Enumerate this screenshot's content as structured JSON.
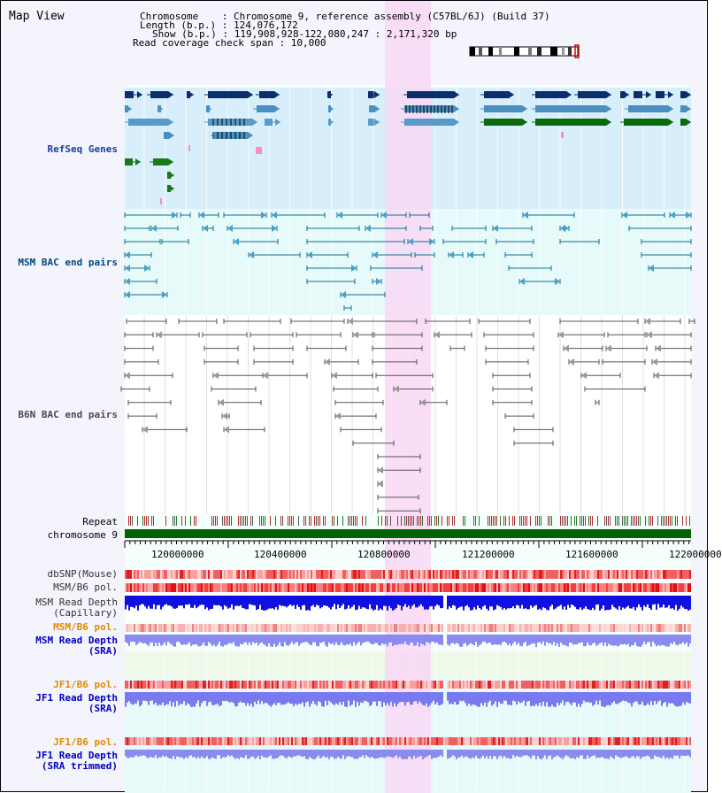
{
  "title": "Map View",
  "header": {
    "chromosome": "Chromosome    : Chromosome 9, reference assembly (C57BL/6J) (Build 37)",
    "length": "Length (b.p.) : 124,076,172",
    "show": "Show (b.p.) : 119,908,928-122,080,247 : 2,171,320 bp",
    "coverage": "Read coverage check span : 10,000"
  },
  "tracks": {
    "refseq": "RefSeq Genes",
    "msm_bac": "MSM BAC end pairs",
    "b6n_bac": "B6N BAC end pairs",
    "repeat": "Repeat",
    "chromosome": "chromosome 9",
    "dbsnp": "dbSNP(Mouse)",
    "msm_b6_pol_cap": "MSM/B6 pol.",
    "msm_read_depth_cap_1": "MSM Read Depth",
    "msm_read_depth_cap_2": "(Capillary)",
    "msm_b6_pol_sra": "MSM/B6 pol.",
    "msm_read_depth_sra_1": "MSM Read Depth",
    "msm_read_depth_sra_2": "(SRA)",
    "jf1_b6_pol_sra": "JF1/B6 pol.",
    "jf1_read_depth_sra_1": "JF1 Read Depth",
    "jf1_read_depth_sra_2": "(SRA)",
    "jf1_b6_pol_trim": "JF1/B6 pol.",
    "jf1_read_depth_trim_1": "JF1 Read Depth",
    "jf1_read_depth_trim_2": "(SRA trimmed)"
  },
  "axis_ticks": [
    "120000000",
    "120400000",
    "120800000",
    "121200000",
    "121600000",
    "122000000"
  ],
  "colors": {
    "refseq_bg": "#d8eefa",
    "msm_bg": "#e6fafa",
    "highlight": "#f8d8f4",
    "chrom_bar": "#006400",
    "msm_label": "#004a80",
    "b6n_label": "#4a4a4a",
    "orange_label": "#e08a00",
    "blue_label": "#0000c0",
    "refseq_label": "#1a3ea0"
  }
}
